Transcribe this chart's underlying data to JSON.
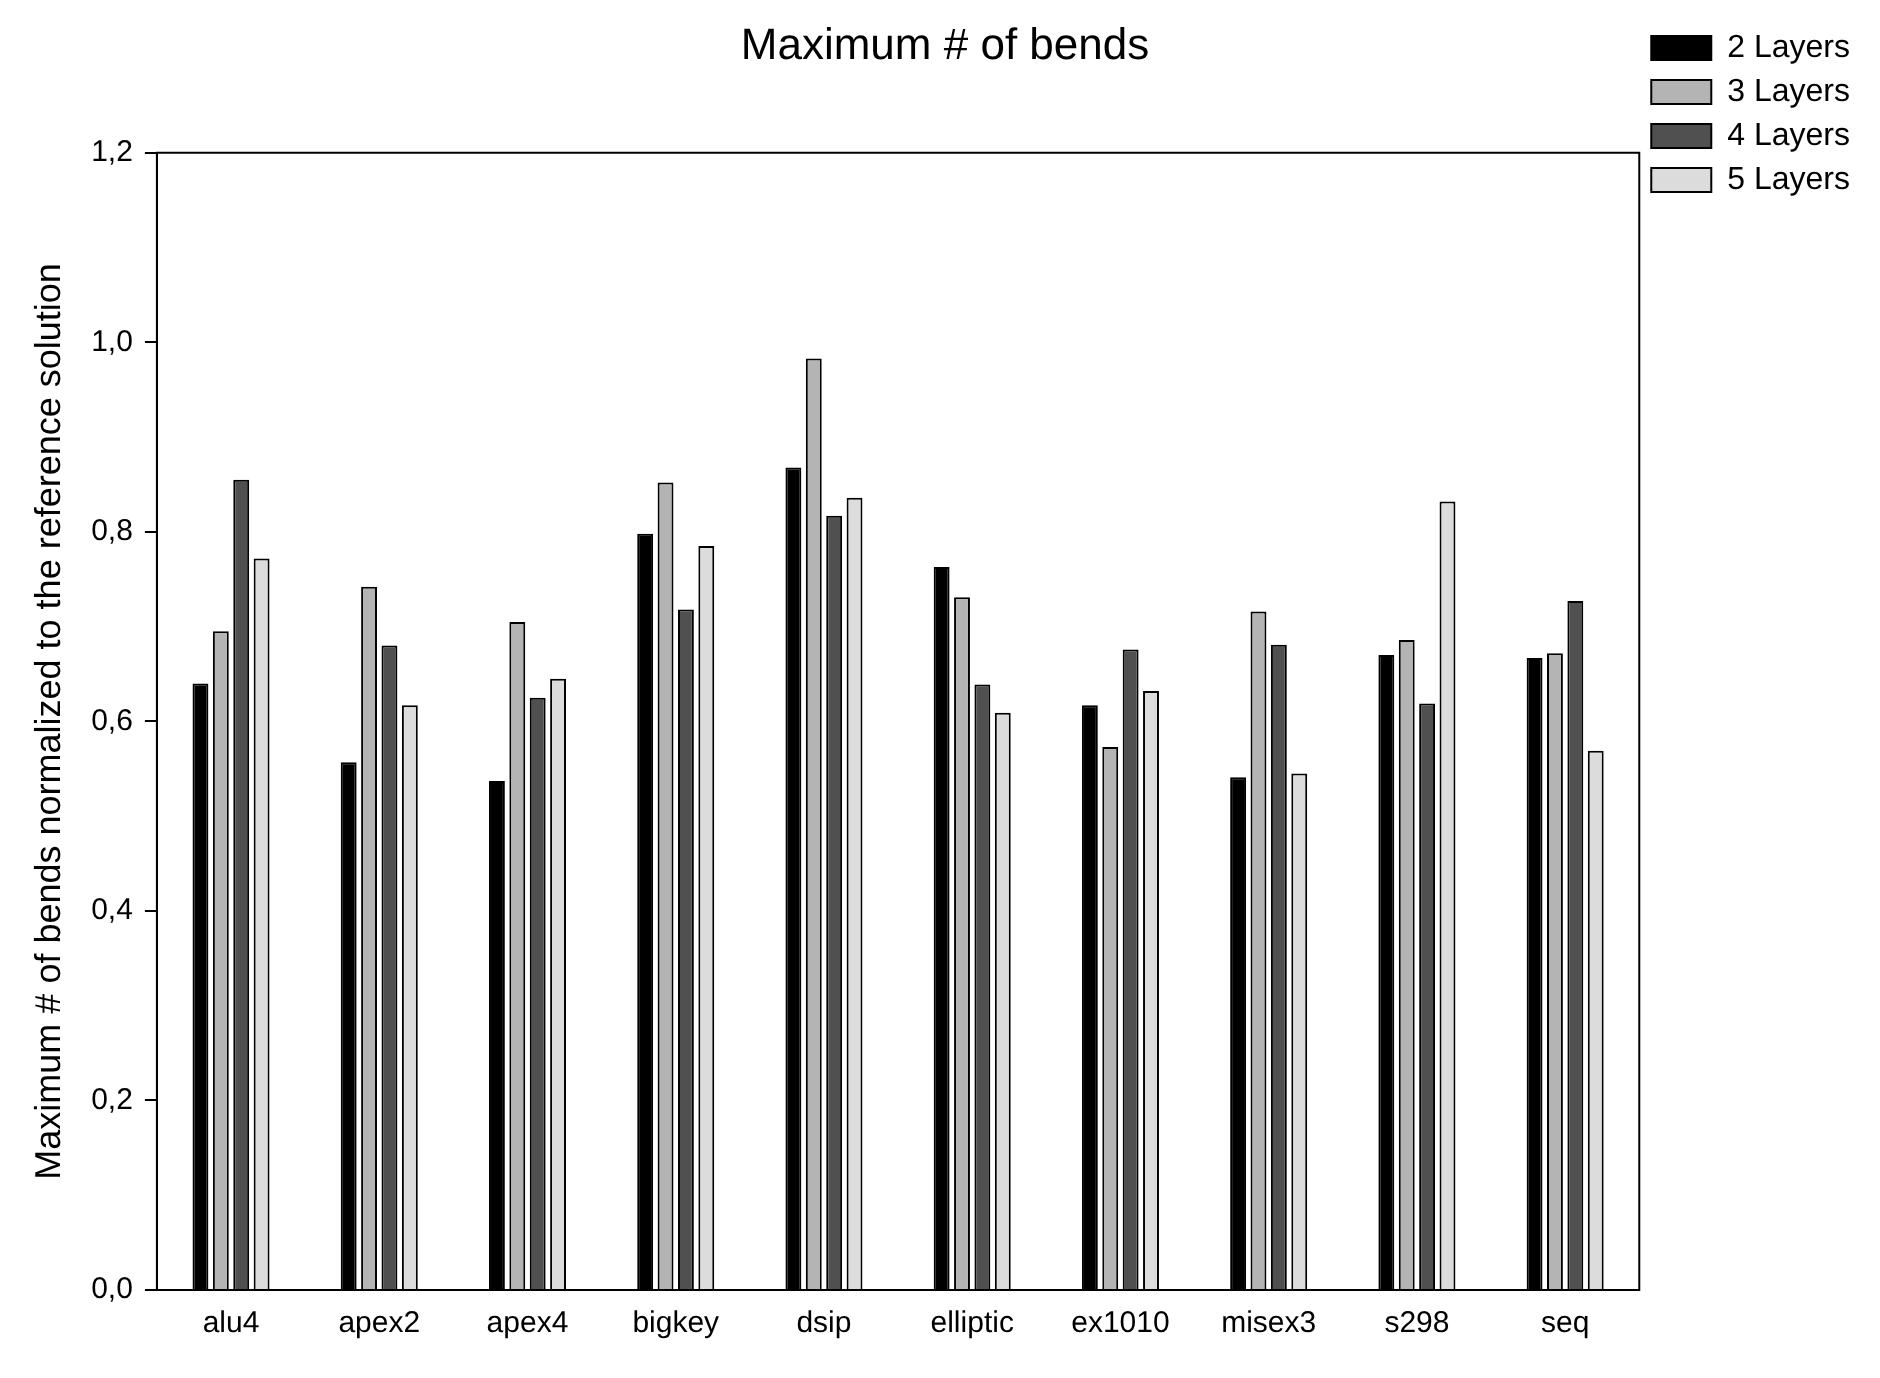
{
  "chart_data": {
    "type": "bar",
    "title": "Maximum # of bends",
    "ylabel": "Maximum # of bends normalized to the reference solution",
    "categories": [
      "alu4",
      "apex2",
      "apex4",
      "bigkey",
      "dsip",
      "elliptic",
      "ex1010",
      "misex3",
      "s298",
      "seq"
    ],
    "series": [
      {
        "name": "2 Layers",
        "color": "#000000",
        "values": [
          0.64,
          0.557,
          0.537,
          0.798,
          0.868,
          0.763,
          0.617,
          0.541,
          0.67,
          0.667
        ]
      },
      {
        "name": "3 Layers",
        "color": "#b4b4b4",
        "values": [
          0.695,
          0.742,
          0.705,
          0.852,
          0.983,
          0.731,
          0.573,
          0.716,
          0.686,
          0.672
        ]
      },
      {
        "name": "4 Layers",
        "color": "#505050",
        "values": [
          0.855,
          0.68,
          0.625,
          0.718,
          0.817,
          0.639,
          0.676,
          0.681,
          0.619,
          0.727
        ]
      },
      {
        "name": "5 Layers",
        "color": "#dcdcdc",
        "values": [
          0.772,
          0.617,
          0.645,
          0.785,
          0.836,
          0.609,
          0.632,
          0.545,
          0.832,
          0.569
        ]
      }
    ],
    "ylim": [
      0,
      1.2
    ],
    "yticks": [
      {
        "value": 0,
        "label": "0,0"
      },
      {
        "value": 0.2,
        "label": "0,2"
      },
      {
        "value": 0.4,
        "label": "0,4"
      },
      {
        "value": 0.6,
        "label": "0,6"
      },
      {
        "value": 0.8,
        "label": "0,8"
      },
      {
        "value": 1.0,
        "label": "1,0"
      },
      {
        "value": 1.2,
        "label": "1,2"
      }
    ],
    "grid": false,
    "legend": "top right"
  }
}
